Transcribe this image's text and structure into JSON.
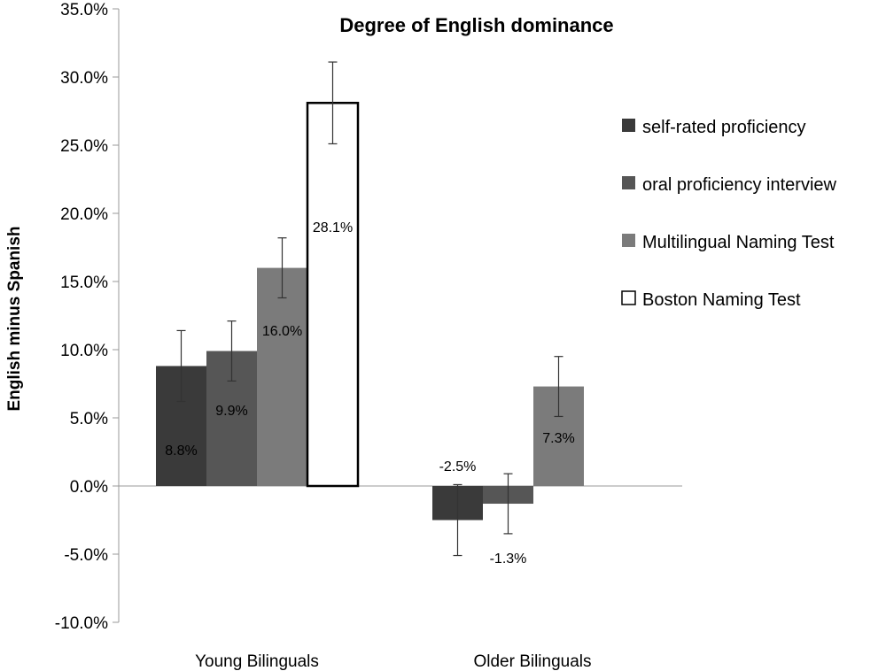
{
  "chart_data": {
    "type": "bar",
    "title": "Degree of English dominance",
    "xlabel": "",
    "ylabel": "English minus Spanish",
    "ylim": [
      -10,
      35
    ],
    "yticks": [
      "-10.0%",
      "-5.0%",
      "0.0%",
      "5.0%",
      "10.0%",
      "15.0%",
      "20.0%",
      "25.0%",
      "30.0%",
      "35.0%"
    ],
    "grid": false,
    "legend_position": "right",
    "categories": [
      "Young Bilinguals",
      "Older Bilinguals"
    ],
    "series": [
      {
        "name": "self-rated proficiency",
        "color": "#3a3a3a",
        "values": [
          8.8,
          -2.5
        ],
        "errors": [
          2.6,
          2.6
        ],
        "labels": [
          "8.8%",
          "-2.5%"
        ]
      },
      {
        "name": "oral proficiency interview",
        "color": "#565656",
        "values": [
          9.9,
          -1.3
        ],
        "errors": [
          2.2,
          2.2
        ],
        "labels": [
          "9.9%",
          "-1.3%"
        ]
      },
      {
        "name": "Multilingual Naming Test",
        "color": "#7b7b7b",
        "values": [
          16.0,
          7.3
        ],
        "errors": [
          2.2,
          2.2
        ],
        "labels": [
          "16.0%",
          "7.3%"
        ]
      },
      {
        "name": "Boston Naming Test",
        "color": "#ffffff",
        "values": [
          28.1,
          null
        ],
        "errors": [
          3.0,
          null
        ],
        "labels": [
          "28.1%",
          null
        ]
      }
    ]
  }
}
